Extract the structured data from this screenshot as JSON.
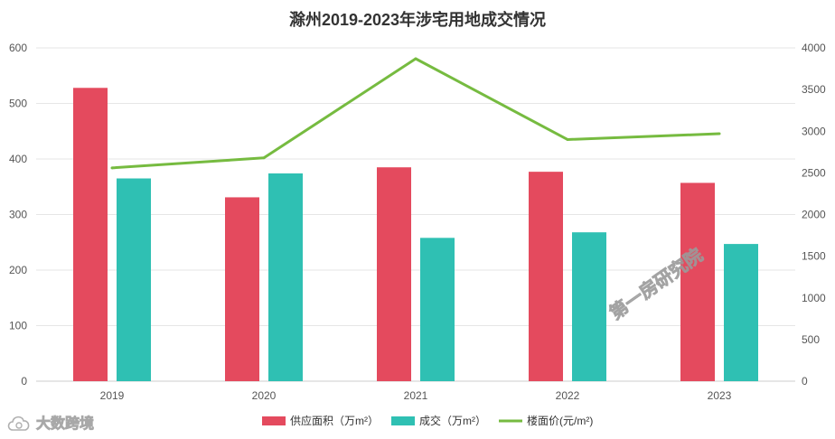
{
  "chart_data": {
    "type": "bar",
    "title": "滁州2019-2023年涉宅用地成交情况",
    "categories": [
      "2019",
      "2020",
      "2021",
      "2022",
      "2023"
    ],
    "series": [
      {
        "name": "供应面积（万m²）",
        "type": "bar",
        "axis": "left",
        "color": "#e44a5e",
        "values": [
          528,
          331,
          385,
          377,
          357
        ]
      },
      {
        "name": "成交（万m²）",
        "type": "bar",
        "axis": "left",
        "color": "#2fc0b3",
        "values": [
          365,
          374,
          258,
          268,
          247
        ]
      },
      {
        "name": "楼面价(元/m²)",
        "type": "line",
        "axis": "right",
        "color": "#76bb40",
        "values": [
          2560,
          2680,
          3870,
          2900,
          2970
        ]
      }
    ],
    "left_axis": {
      "min": 0,
      "max": 600,
      "ticks": [
        "0",
        "100",
        "200",
        "300",
        "400",
        "500",
        "600"
      ]
    },
    "right_axis": {
      "min": 0,
      "max": 4000,
      "ticks": [
        "0",
        "500",
        "1000",
        "1500",
        "2000",
        "2500",
        "3000",
        "3500",
        "4000"
      ]
    },
    "grid": true,
    "legend_position": "bottom"
  },
  "watermark": "第一房研究院",
  "logo": {
    "text": "大数跨境",
    "icon": "cloud-logo-icon"
  }
}
